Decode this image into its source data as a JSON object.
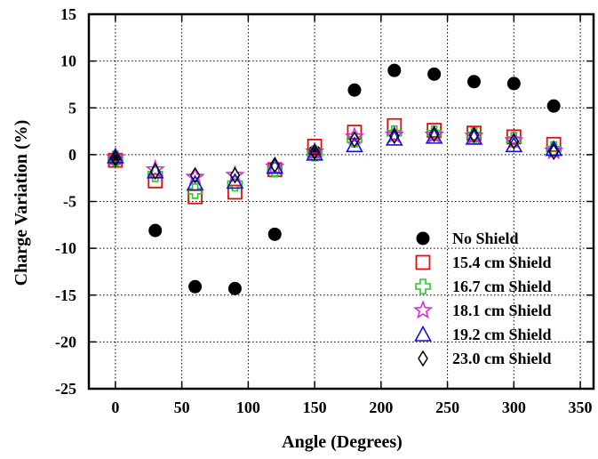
{
  "chart_data": {
    "type": "scatter",
    "title": "",
    "xlabel": "Angle (Degrees)",
    "ylabel": "Charge Variation (%)",
    "xlim": [
      -20,
      360
    ],
    "ylim": [
      -25,
      15
    ],
    "xticks": [
      0,
      50,
      100,
      150,
      200,
      250,
      300,
      350
    ],
    "yticks": [
      -25,
      -20,
      -15,
      -10,
      -5,
      0,
      5,
      10,
      15
    ],
    "grid": true,
    "legend_position": "bottom-right",
    "x": [
      0,
      30,
      60,
      90,
      120,
      150,
      180,
      210,
      240,
      270,
      300,
      330
    ],
    "series": [
      {
        "name": "No Shield",
        "marker": "filled-circle",
        "color": "#000000",
        "values": [
          -0.5,
          -8.1,
          -14.1,
          -14.3,
          -8.5,
          0.3,
          6.9,
          9.0,
          8.6,
          7.8,
          7.6,
          5.2
        ]
      },
      {
        "name": "15.4 cm Shield",
        "marker": "square",
        "color": "#e01010",
        "values": [
          -0.6,
          -2.8,
          -4.5,
          -4.0,
          -1.6,
          0.9,
          2.4,
          3.1,
          2.6,
          2.3,
          1.9,
          1.1
        ]
      },
      {
        "name": "16.7 cm Shield",
        "marker": "cross",
        "color": "#22cc22",
        "values": [
          -0.4,
          -2.1,
          -3.9,
          -3.1,
          -1.6,
          0.1,
          1.6,
          2.3,
          2.3,
          2.1,
          1.6,
          0.6
        ]
      },
      {
        "name": "18.1 cm Shield",
        "marker": "star",
        "color": "#e020e0",
        "values": [
          -0.3,
          -1.6,
          -2.4,
          -2.2,
          -1.3,
          0.3,
          1.9,
          2.1,
          2.1,
          2.0,
          1.5,
          0.4
        ]
      },
      {
        "name": "19.2 cm Shield",
        "marker": "triangle",
        "color": "#1010e0",
        "values": [
          -0.2,
          -1.8,
          -3.1,
          -2.9,
          -1.3,
          0.1,
          1.0,
          1.7,
          1.9,
          1.8,
          1.0,
          0.6
        ]
      },
      {
        "name": "23.0 cm Shield",
        "marker": "diamond",
        "color": "#000000",
        "values": [
          -0.4,
          -1.8,
          -2.2,
          -2.2,
          -1.1,
          0.3,
          1.6,
          2.0,
          2.2,
          2.1,
          1.4,
          0.3
        ]
      }
    ]
  }
}
